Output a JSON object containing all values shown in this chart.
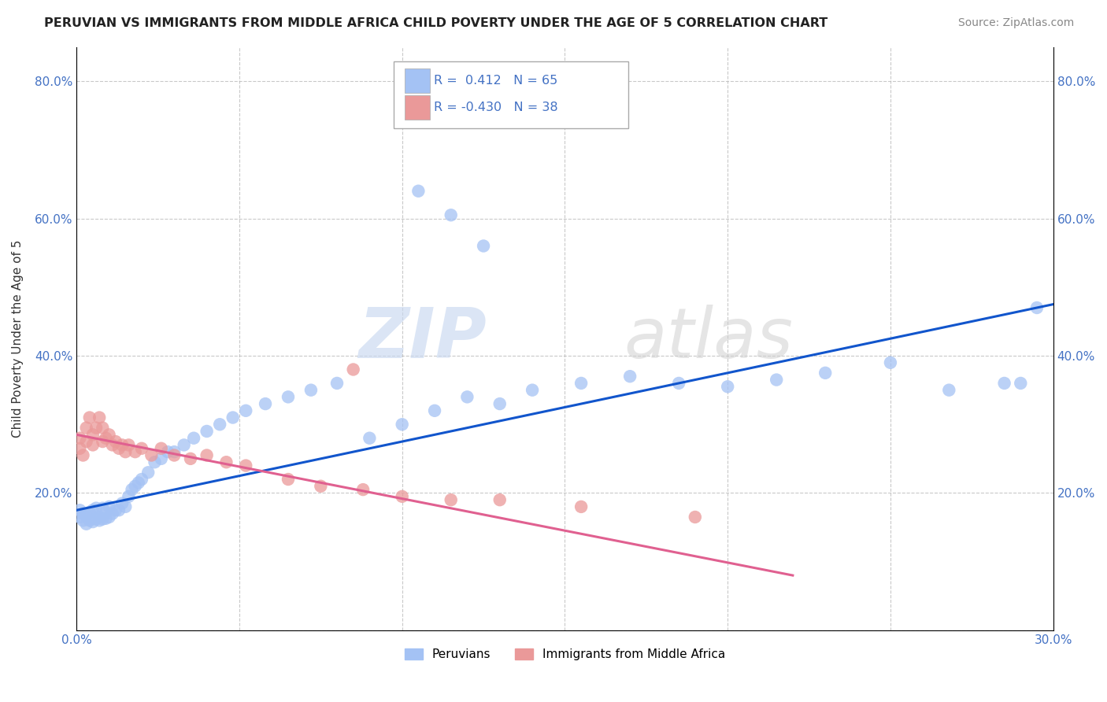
{
  "title": "PERUVIAN VS IMMIGRANTS FROM MIDDLE AFRICA CHILD POVERTY UNDER THE AGE OF 5 CORRELATION CHART",
  "source": "Source: ZipAtlas.com",
  "ylabel": "Child Poverty Under the Age of 5",
  "x_min": 0.0,
  "x_max": 0.3,
  "y_min": 0.0,
  "y_max": 0.85,
  "x_ticks": [
    0.0,
    0.05,
    0.1,
    0.15,
    0.2,
    0.25,
    0.3
  ],
  "x_tick_labels": [
    "0.0%",
    "",
    "",
    "",
    "",
    "",
    "30.0%"
  ],
  "y_ticks": [
    0.0,
    0.2,
    0.4,
    0.6,
    0.8
  ],
  "y_tick_labels": [
    "",
    "20.0%",
    "40.0%",
    "60.0%",
    "80.0%"
  ],
  "blue_R": 0.412,
  "blue_N": 65,
  "pink_R": -0.43,
  "pink_N": 38,
  "blue_color": "#a4c2f4",
  "pink_color": "#ea9999",
  "blue_line_color": "#1155cc",
  "pink_line_color": "#e06090",
  "watermark_zip": "ZIP",
  "watermark_atlas": "atlas",
  "legend_label_blue": "Peruvians",
  "legend_label_pink": "Immigrants from Middle Africa",
  "blue_scatter_x": [
    0.001,
    0.001,
    0.002,
    0.002,
    0.003,
    0.003,
    0.004,
    0.004,
    0.005,
    0.005,
    0.006,
    0.006,
    0.007,
    0.007,
    0.008,
    0.008,
    0.009,
    0.009,
    0.01,
    0.01,
    0.011,
    0.012,
    0.013,
    0.014,
    0.015,
    0.016,
    0.017,
    0.018,
    0.019,
    0.02,
    0.022,
    0.024,
    0.026,
    0.028,
    0.03,
    0.033,
    0.036,
    0.04,
    0.044,
    0.048,
    0.052,
    0.058,
    0.065,
    0.072,
    0.08,
    0.09,
    0.1,
    0.11,
    0.12,
    0.13,
    0.14,
    0.155,
    0.17,
    0.185,
    0.2,
    0.215,
    0.23,
    0.25,
    0.268,
    0.285,
    0.295,
    0.105,
    0.115,
    0.125,
    0.29
  ],
  "blue_scatter_y": [
    0.165,
    0.175,
    0.16,
    0.17,
    0.155,
    0.168,
    0.16,
    0.172,
    0.158,
    0.175,
    0.162,
    0.178,
    0.16,
    0.165,
    0.162,
    0.178,
    0.163,
    0.172,
    0.165,
    0.18,
    0.17,
    0.175,
    0.175,
    0.185,
    0.18,
    0.195,
    0.205,
    0.21,
    0.215,
    0.22,
    0.23,
    0.245,
    0.25,
    0.26,
    0.26,
    0.27,
    0.28,
    0.29,
    0.3,
    0.31,
    0.32,
    0.33,
    0.34,
    0.35,
    0.36,
    0.28,
    0.3,
    0.32,
    0.34,
    0.33,
    0.35,
    0.36,
    0.37,
    0.36,
    0.355,
    0.365,
    0.375,
    0.39,
    0.35,
    0.36,
    0.47,
    0.64,
    0.605,
    0.56,
    0.36
  ],
  "pink_scatter_x": [
    0.001,
    0.001,
    0.002,
    0.003,
    0.003,
    0.004,
    0.005,
    0.005,
    0.006,
    0.007,
    0.008,
    0.008,
    0.009,
    0.01,
    0.011,
    0.012,
    0.013,
    0.014,
    0.015,
    0.016,
    0.018,
    0.02,
    0.023,
    0.026,
    0.03,
    0.035,
    0.04,
    0.046,
    0.052,
    0.065,
    0.075,
    0.088,
    0.1,
    0.115,
    0.13,
    0.155,
    0.19,
    0.085
  ],
  "pink_scatter_y": [
    0.265,
    0.28,
    0.255,
    0.275,
    0.295,
    0.31,
    0.27,
    0.285,
    0.295,
    0.31,
    0.275,
    0.295,
    0.28,
    0.285,
    0.27,
    0.275,
    0.265,
    0.27,
    0.26,
    0.27,
    0.26,
    0.265,
    0.255,
    0.265,
    0.255,
    0.25,
    0.255,
    0.245,
    0.24,
    0.22,
    0.21,
    0.205,
    0.195,
    0.19,
    0.19,
    0.18,
    0.165,
    0.38
  ],
  "blue_line_x0": 0.0,
  "blue_line_x1": 0.3,
  "blue_line_y0": 0.175,
  "blue_line_y1": 0.475,
  "pink_line_x0": 0.0,
  "pink_line_x1": 0.22,
  "pink_line_y0": 0.285,
  "pink_line_y1": 0.08
}
